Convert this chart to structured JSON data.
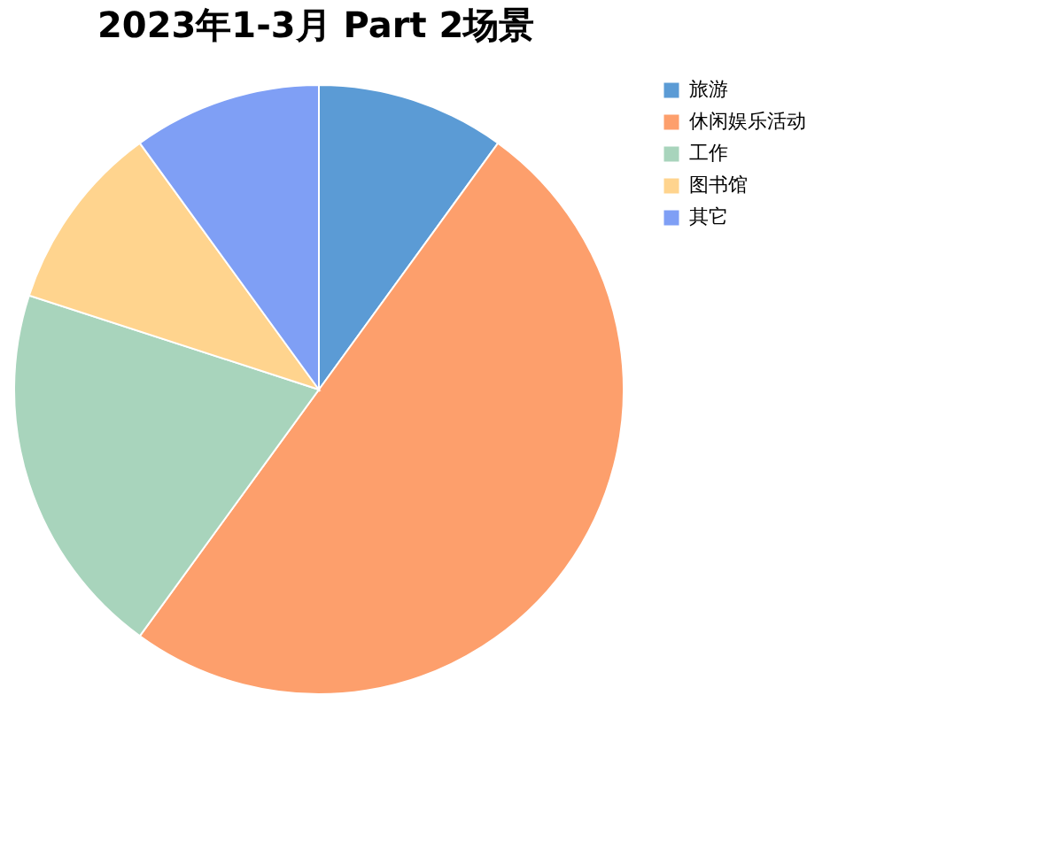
{
  "chart_data": {
    "type": "pie",
    "title": "2023年1-3月 Part 2场景",
    "categories": [
      "旅游",
      "休闲娱乐活动",
      "工作",
      "图书馆",
      "其它"
    ],
    "values": [
      10,
      50,
      20,
      10,
      10
    ],
    "colors": [
      "#5b9bd5",
      "#fd9f6c",
      "#a8d4bc",
      "#ffd48e",
      "#7f9ff5"
    ],
    "legend": "right"
  }
}
